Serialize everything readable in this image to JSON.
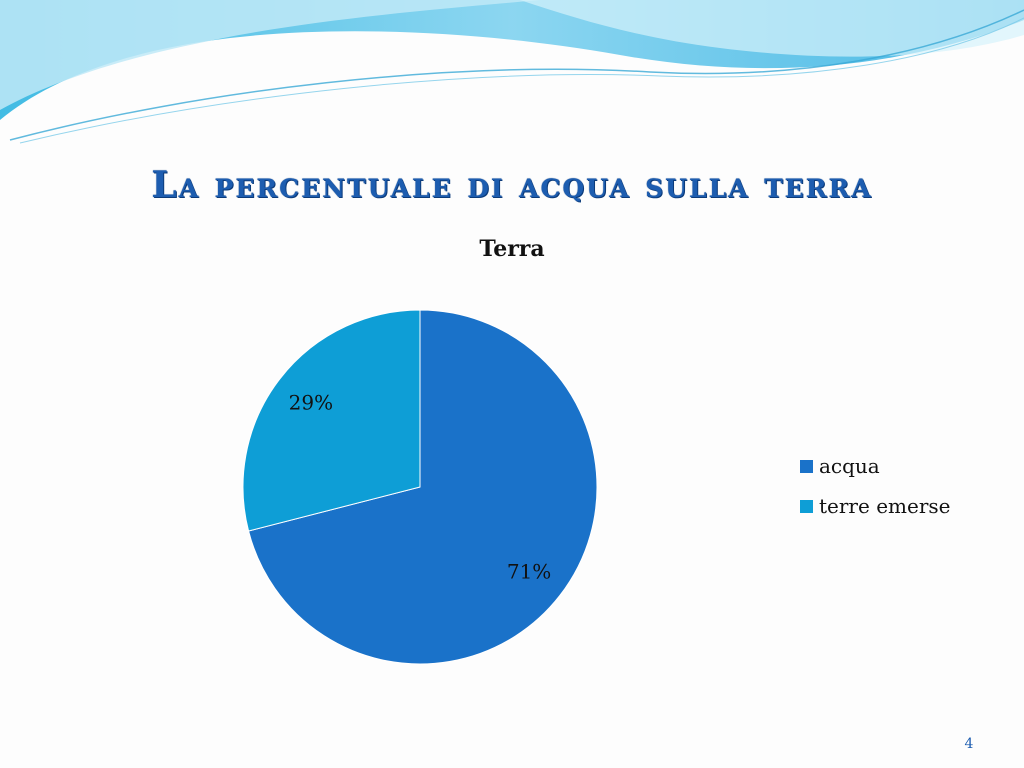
{
  "slide": {
    "title": "La percentuale di acqua sulla terra",
    "page_number": "4"
  },
  "chart_data": {
    "type": "pie",
    "title": "Terra",
    "categories": [
      "acqua",
      "terre emerse"
    ],
    "values": [
      71,
      29
    ],
    "value_labels": [
      "71%",
      "29%"
    ],
    "colors": [
      "#1a72c9",
      "#0e9ed6"
    ],
    "legend_position": "right"
  },
  "theme": {
    "title_color": "#1d5db0",
    "wave_colors": [
      "#4ac0e6",
      "#8fd6ef",
      "#c9ecf8"
    ]
  }
}
